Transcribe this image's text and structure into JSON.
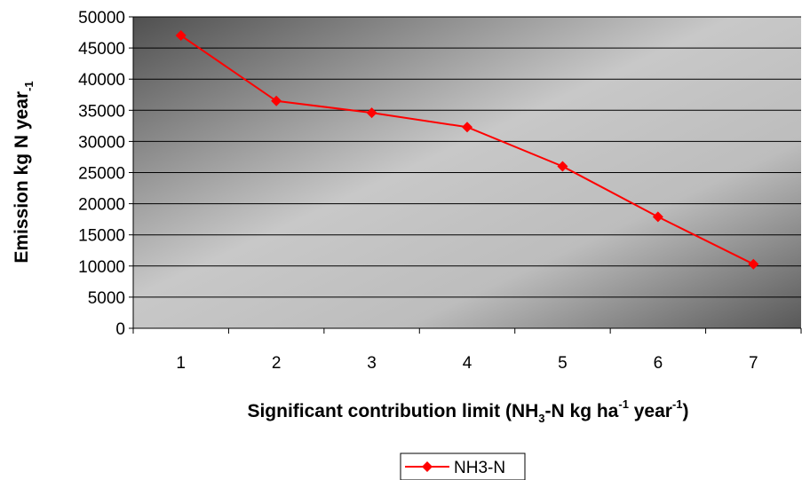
{
  "chart_data": {
    "type": "line",
    "categories": [
      "1",
      "2",
      "3",
      "4",
      "5",
      "6",
      "7"
    ],
    "series": [
      {
        "name": "NH3-N",
        "values": [
          47000,
          36500,
          34600,
          32300,
          26000,
          17900,
          10300
        ],
        "color": "#ff0000",
        "marker": "diamond"
      }
    ],
    "ylim": [
      0,
      50000
    ],
    "yticks": [
      0,
      5000,
      10000,
      15000,
      20000,
      25000,
      30000,
      35000,
      40000,
      45000,
      50000
    ],
    "xlabel": {
      "part1": "Significant contribution limit (NH",
      "sub1": "3",
      "part2": "-N kg ha",
      "sup1": "-1",
      "part3": " year",
      "sup2": "-1",
      "part4": ")"
    },
    "ylabel": {
      "main": "Emission kg N year",
      "sub": "-1"
    },
    "grid": true,
    "legend_position": "bottom-center",
    "background": "gradient-gray"
  }
}
